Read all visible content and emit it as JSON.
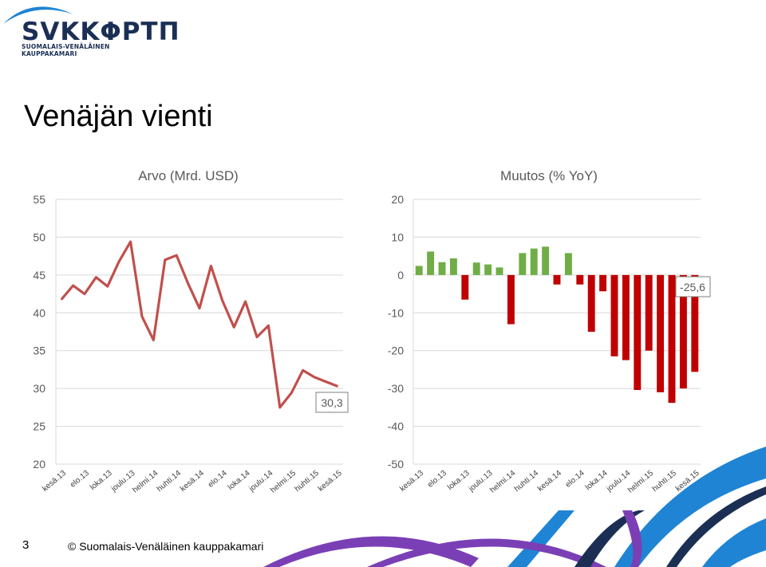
{
  "logo": {
    "text": "SVKKΦΡΤΠ",
    "subtitle": "SUOMALAIS-VENÄLÄINEN KAUPPAKAMARI"
  },
  "page_title": "Venäjän vienti",
  "footer": {
    "page_number": "3",
    "copyright": "© Suomalais-Venäläinen kauppakamari"
  },
  "colors": {
    "line": "#c0504d",
    "positive": "#70ad47",
    "negative": "#c00000",
    "grid": "#d9d9d9",
    "accent_blue": "#1f84d4",
    "accent_purple": "#7a3fb5",
    "accent_dark": "#1b2f54"
  },
  "chart_data": [
    {
      "type": "line",
      "title": "Arvo (Mrd. USD)",
      "ylim": [
        20,
        55
      ],
      "yticks": [
        "20",
        "25",
        "30",
        "35",
        "40",
        "45",
        "50",
        "55"
      ],
      "x_tick_labels": [
        "kesä.13",
        "elo.13",
        "loka.13",
        "joulu.13",
        "helmi.14",
        "huhti.14",
        "kesä.14",
        "elo.14",
        "loka.14",
        "joulu.14",
        "helmi.15",
        "huhti.15",
        "kesä.15"
      ],
      "series": [
        {
          "values": [
            41.8,
            43.6,
            42.5,
            44.7,
            43.5,
            46.8,
            49.4,
            39.5,
            36.4,
            47.0,
            47.6,
            43.9,
            40.6,
            46.2,
            41.6,
            38.1,
            41.5,
            36.8,
            38.3,
            27.5,
            29.4,
            32.4,
            31.5,
            30.9,
            30.3
          ]
        }
      ],
      "annotation": "30,3",
      "grid": true
    },
    {
      "type": "bar",
      "title": "Muutos (% YoY)",
      "ylim": [
        -50,
        20
      ],
      "yticks": [
        "-50",
        "-40",
        "-30",
        "-20",
        "-10",
        "0",
        "10",
        "20"
      ],
      "x_tick_labels": [
        "kesä.13",
        "elo.13",
        "loka.13",
        "joulu.13",
        "helmi.14",
        "huhti.14",
        "kesä.14",
        "elo.14",
        "loka.14",
        "joulu.14",
        "helmi.15",
        "huhti.15",
        "kesä.15"
      ],
      "series": [
        {
          "values": [
            2.4,
            6.2,
            3.4,
            4.4,
            -6.5,
            3.3,
            2.8,
            2.0,
            -13.0,
            5.8,
            7.0,
            7.5,
            -2.5,
            5.8,
            -2.5,
            -15.0,
            -4.3,
            -21.5,
            -22.5,
            -30.4,
            -20.0,
            -31.0,
            -33.8,
            -30.0,
            -25.6
          ]
        }
      ],
      "annotation": "-25,6",
      "grid": true
    }
  ]
}
